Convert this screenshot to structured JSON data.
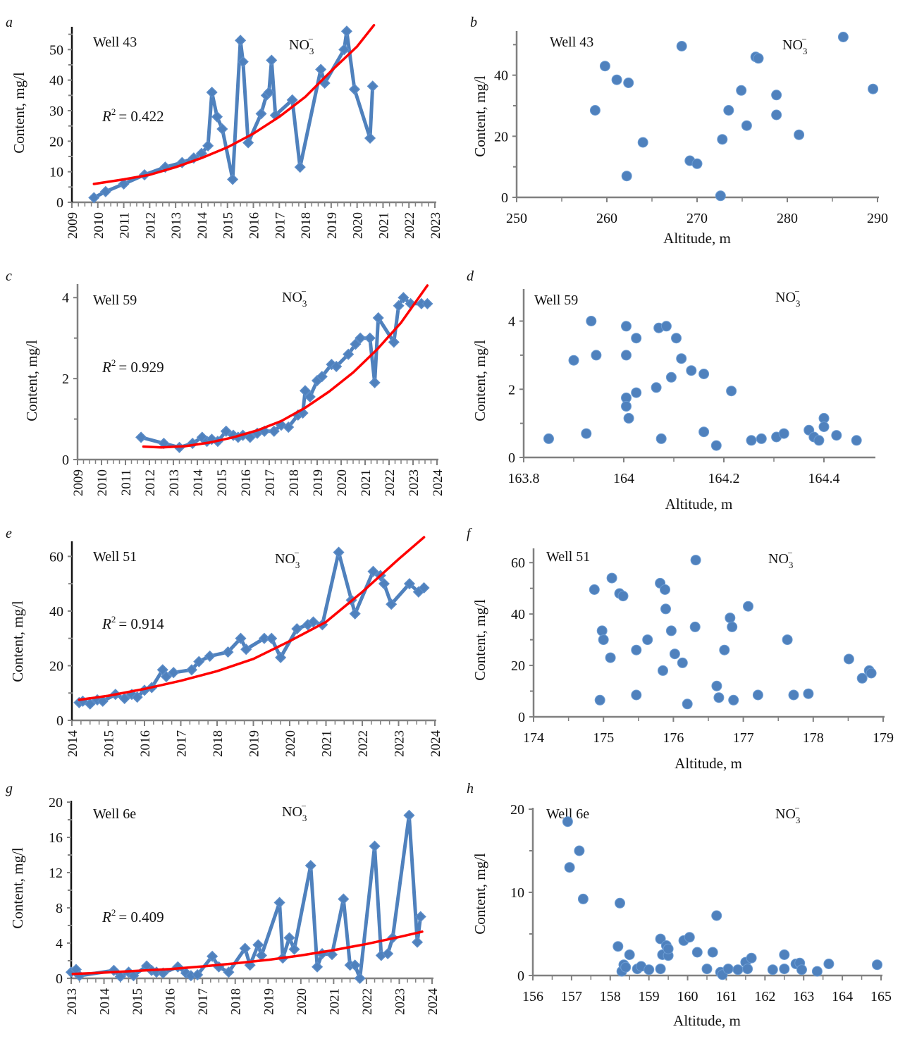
{
  "figure": {
    "colors": {
      "series": "#4f81bd",
      "trend": "#ff0000",
      "axis_dark": "#111111",
      "axis_gray": "#808080"
    },
    "ion_label": {
      "base": "NO",
      "sub": "3",
      "sup": "−"
    }
  },
  "chart_data": [
    {
      "panel": "a",
      "type": "line",
      "well": "Well 43",
      "r2_label": "R",
      "r2_value": "= 0.422",
      "xlabel": "",
      "ylabel": "Content, mg/l",
      "xlim": [
        2009,
        2023
      ],
      "ylim": [
        0,
        57
      ],
      "xticks": [
        "2009",
        "2010",
        "2011",
        "2012",
        "2013",
        "2014",
        "2015",
        "2016",
        "2017",
        "2018",
        "2019",
        "2020",
        "2021",
        "2022",
        "2023"
      ],
      "yticks": [
        0,
        10,
        20,
        30,
        40,
        50
      ],
      "x": [
        2009.85,
        2010.3,
        2011.0,
        2011.8,
        2012.6,
        2013.25,
        2013.7,
        2014.0,
        2014.25,
        2014.4,
        2014.6,
        2014.8,
        2015.2,
        2015.5,
        2015.6,
        2015.8,
        2016.3,
        2016.5,
        2016.6,
        2016.7,
        2016.85,
        2017.5,
        2017.8,
        2018.6,
        2018.75,
        2019.5,
        2019.6,
        2019.9,
        2020.5,
        2020.6
      ],
      "y": [
        1.5,
        3.5,
        6,
        9,
        11.5,
        13,
        14.5,
        16,
        18.5,
        36,
        28,
        24,
        7.5,
        53,
        46,
        19.5,
        29,
        35,
        36,
        46.5,
        28.5,
        33.5,
        11.5,
        43.5,
        39,
        50,
        56,
        37,
        21,
        38
      ],
      "trend": {
        "type": "exponential",
        "x": [
          2009.85,
          2011,
          2012,
          2013,
          2014,
          2015,
          2016,
          2017,
          2018,
          2019,
          2020,
          2020.65
        ],
        "y": [
          6,
          7.5,
          9,
          11.5,
          14.5,
          18,
          22.5,
          28,
          34.5,
          43,
          51,
          58
        ]
      }
    },
    {
      "panel": "b",
      "type": "scatter",
      "well": "Well 43",
      "xlabel": "Altitude, m",
      "ylabel": "Content, mg/l",
      "xlim": [
        250,
        290
      ],
      "ylim": [
        0,
        54
      ],
      "xticks": [
        250,
        260,
        270,
        280,
        290
      ],
      "yticks": [
        0,
        20,
        40
      ],
      "x": [
        258.7,
        259.8,
        261.1,
        262.4,
        262.2,
        264.0,
        268.3,
        269.2,
        270.0,
        272.6,
        272.8,
        273.5,
        274.9,
        275.5,
        276.5,
        276.8,
        278.8,
        278.8,
        281.3,
        286.2,
        289.5
      ],
      "y": [
        28.5,
        43,
        38.5,
        37.5,
        7,
        18,
        49.5,
        12,
        11,
        0.5,
        19,
        28.5,
        35,
        23.5,
        46,
        45.5,
        33.5,
        27,
        20.5,
        52.5,
        35.5
      ]
    },
    {
      "panel": "c",
      "type": "line",
      "well": "Well 59",
      "r2_label": "R",
      "r2_value": "= 0.929",
      "xlabel": "",
      "ylabel": "Content, mg/l",
      "xlim": [
        2009,
        2024
      ],
      "ylim": [
        0,
        4.3
      ],
      "xticks": [
        "2009",
        "2010",
        "2011",
        "2012",
        "2013",
        "2014",
        "2015",
        "2016",
        "2017",
        "2018",
        "2019",
        "2020",
        "2021",
        "2022",
        "2023",
        "2024"
      ],
      "yticks": [
        0,
        2,
        4
      ],
      "x": [
        2011.65,
        2012.6,
        2013.25,
        2013.8,
        2014.2,
        2014.4,
        2014.6,
        2014.85,
        2015.2,
        2015.5,
        2015.7,
        2015.9,
        2016.2,
        2016.5,
        2016.8,
        2017.2,
        2017.5,
        2017.8,
        2018.2,
        2018.4,
        2018.5,
        2018.7,
        2019.0,
        2019.2,
        2019.6,
        2019.8,
        2020.3,
        2020.6,
        2020.8,
        2021.2,
        2021.4,
        2021.55,
        2022.2,
        2022.4,
        2022.6,
        2022.9,
        2023.35,
        2023.6
      ],
      "y": [
        0.55,
        0.4,
        0.3,
        0.4,
        0.55,
        0.45,
        0.5,
        0.45,
        0.7,
        0.6,
        0.55,
        0.6,
        0.55,
        0.65,
        0.7,
        0.7,
        0.85,
        0.8,
        1.1,
        1.15,
        1.7,
        1.55,
        1.95,
        2.05,
        2.35,
        2.3,
        2.6,
        2.85,
        3.0,
        3.0,
        1.9,
        3.5,
        2.9,
        3.8,
        4.0,
        3.85,
        3.85,
        3.85
      ],
      "trend": {
        "type": "polynomial",
        "x": [
          2011.75,
          2012.5,
          2013.5,
          2014.5,
          2015.5,
          2016.5,
          2017.5,
          2018.5,
          2019.5,
          2020.5,
          2021.5,
          2022.5,
          2023.6
        ],
        "y": [
          0.32,
          0.3,
          0.33,
          0.42,
          0.55,
          0.72,
          0.95,
          1.28,
          1.68,
          2.15,
          2.72,
          3.38,
          4.3
        ]
      }
    },
    {
      "panel": "d",
      "type": "scatter",
      "well": "Well 59",
      "xlabel": "Altitude, m",
      "ylabel": "Content, mg/l",
      "xlim": [
        163.8,
        164.5
      ],
      "ylim": [
        0,
        4.9
      ],
      "xticks": [
        "163.8",
        "164",
        "164.2",
        "164.4"
      ],
      "xtick_values": [
        163.8,
        164.0,
        164.2,
        164.4
      ],
      "yticks": [
        0,
        2,
        4
      ],
      "x": [
        163.85,
        163.9,
        163.925,
        163.935,
        163.945,
        164.005,
        164.005,
        164.005,
        164.005,
        164.01,
        164.025,
        164.025,
        164.065,
        164.07,
        164.075,
        164.085,
        164.095,
        164.105,
        164.115,
        164.135,
        164.16,
        164.16,
        164.185,
        164.215,
        164.255,
        164.275,
        164.305,
        164.32,
        164.37,
        164.38,
        164.39,
        164.4,
        164.4,
        164.425,
        164.465
      ],
      "y": [
        0.55,
        2.85,
        0.7,
        4.0,
        3.0,
        3.85,
        3.0,
        1.75,
        1.5,
        1.15,
        3.5,
        1.9,
        2.05,
        3.8,
        0.55,
        3.85,
        2.35,
        3.5,
        2.9,
        2.55,
        2.45,
        0.75,
        0.35,
        1.95,
        0.5,
        0.55,
        0.6,
        0.7,
        0.8,
        0.6,
        0.5,
        1.15,
        0.9,
        0.65,
        0.5
      ]
    },
    {
      "panel": "e",
      "type": "line",
      "well": "Well 51",
      "r2_label": "R",
      "r2_value": "= 0.914",
      "xlabel": "",
      "ylabel": "Content, mg/l",
      "xlim": [
        2014,
        2024
      ],
      "ylim": [
        0,
        65
      ],
      "xticks": [
        "2014",
        "2015",
        "2016",
        "2017",
        "2018",
        "2019",
        "2020",
        "2021",
        "2022",
        "2023",
        "2024"
      ],
      "yticks": [
        0,
        20,
        40,
        60
      ],
      "x": [
        2014.2,
        2014.3,
        2014.5,
        2014.7,
        2014.85,
        2015.2,
        2015.45,
        2015.65,
        2015.8,
        2016.0,
        2016.2,
        2016.5,
        2016.6,
        2016.8,
        2017.3,
        2017.5,
        2017.8,
        2018.3,
        2018.65,
        2018.8,
        2019.3,
        2019.5,
        2019.75,
        2020.2,
        2020.5,
        2020.65,
        2020.9,
        2021.35,
        2021.7,
        2021.8,
        2022.3,
        2022.5,
        2022.6,
        2022.8,
        2023.3,
        2023.55,
        2023.7
      ],
      "y": [
        6.5,
        7,
        6,
        7.5,
        7,
        9.5,
        8,
        9.5,
        8.5,
        11,
        12,
        18.5,
        16,
        17.5,
        18.5,
        21.5,
        23.5,
        25,
        30,
        26,
        30,
        30,
        23,
        33.5,
        35,
        36,
        35,
        61.5,
        44,
        39,
        54.5,
        53,
        50,
        42.5,
        50,
        47,
        48.5
      ],
      "trend": {
        "type": "exponential",
        "x": [
          2014.2,
          2015,
          2016,
          2017,
          2018,
          2019,
          2020,
          2021,
          2022,
          2023,
          2023.7
        ],
        "y": [
          7.5,
          9,
          11.5,
          14.5,
          18,
          22.5,
          29,
          36,
          47,
          59,
          67
        ]
      }
    },
    {
      "panel": "f",
      "type": "scatter",
      "well": "Well 51",
      "xlabel": "Altitude, m",
      "ylabel": "Content, mg/l",
      "xlim": [
        174,
        179
      ],
      "ylim": [
        0,
        65
      ],
      "xticks": [
        174,
        175,
        176,
        177,
        178,
        179
      ],
      "yticks": [
        0,
        20,
        40,
        60
      ],
      "x": [
        174.87,
        174.95,
        174.98,
        175.0,
        175.1,
        175.12,
        175.23,
        175.28,
        175.47,
        175.47,
        175.63,
        175.81,
        175.85,
        175.88,
        175.89,
        175.97,
        176.02,
        176.13,
        176.2,
        176.31,
        176.32,
        176.62,
        176.65,
        176.73,
        176.81,
        176.84,
        176.86,
        177.07,
        177.21,
        177.63,
        177.72,
        177.93,
        178.51,
        178.7,
        178.8,
        178.83
      ],
      "y": [
        49.5,
        6.5,
        33.5,
        30,
        23,
        54,
        48,
        47,
        26,
        8.5,
        30,
        52,
        18,
        49.5,
        42,
        33.5,
        24.5,
        21,
        5,
        35,
        61,
        12,
        7.5,
        26,
        38.5,
        35,
        6.5,
        43,
        8.5,
        30,
        8.5,
        9,
        22.5,
        15,
        18,
        17
      ]
    },
    {
      "panel": "g",
      "type": "line",
      "well": "Well 6e",
      "r2_label": "R",
      "r2_value": "= 0.409",
      "xlabel": "",
      "ylabel": "Content, mg/l",
      "xlim": [
        2013,
        2024
      ],
      "ylim": [
        0,
        20
      ],
      "xticks": [
        "2013",
        "2014",
        "2015",
        "2016",
        "2017",
        "2018",
        "2019",
        "2020",
        "2021",
        "2022",
        "2023",
        "2024"
      ],
      "yticks": [
        0,
        4,
        8,
        12,
        16,
        20
      ],
      "x": [
        2013.0,
        2013.15,
        2013.25,
        2014.3,
        2014.5,
        2014.75,
        2014.9,
        2015.3,
        2015.45,
        2015.6,
        2015.8,
        2016.25,
        2016.5,
        2016.65,
        2016.85,
        2017.3,
        2017.5,
        2017.8,
        2018.3,
        2018.45,
        2018.7,
        2018.8,
        2019.35,
        2019.45,
        2019.65,
        2019.8,
        2020.3,
        2020.5,
        2020.65,
        2020.95,
        2021.3,
        2021.5,
        2021.65,
        2021.8,
        2022.25,
        2022.45,
        2022.65,
        2022.8,
        2023.3,
        2023.55,
        2023.65
      ],
      "y": [
        0.7,
        1.0,
        0.3,
        0.9,
        0.2,
        0.7,
        0.3,
        1.4,
        0.9,
        0.7,
        0.6,
        1.3,
        0.6,
        0.3,
        0.4,
        2.5,
        1.3,
        0.7,
        3.4,
        1.5,
        3.8,
        2.6,
        8.6,
        2.3,
        4.6,
        3.3,
        12.8,
        1.3,
        2.8,
        2.7,
        9.0,
        1.5,
        1.5,
        0.0,
        15.0,
        2.6,
        2.8,
        4.6,
        18.5,
        4.1,
        7.0
      ],
      "trend": {
        "type": "exponential",
        "x": [
          2013.05,
          2014,
          2015,
          2016,
          2017,
          2018,
          2019,
          2020,
          2021,
          2022,
          2023,
          2023.7
        ],
        "y": [
          0.5,
          0.65,
          0.85,
          1.05,
          1.35,
          1.7,
          2.1,
          2.6,
          3.2,
          3.9,
          4.7,
          5.3
        ]
      }
    },
    {
      "panel": "h",
      "type": "scatter",
      "well": "Well 6e",
      "xlabel": "Altitude, m",
      "ylabel": "Content, mg/l",
      "xlim": [
        156,
        165
      ],
      "ylim": [
        0,
        20
      ],
      "xticks": [
        156,
        157,
        158,
        159,
        160,
        161,
        162,
        163,
        164,
        165
      ],
      "yticks": [
        0,
        10,
        20
      ],
      "x": [
        156.9,
        156.95,
        157.2,
        157.3,
        158.2,
        158.25,
        158.3,
        158.35,
        158.4,
        158.5,
        158.7,
        158.8,
        159.0,
        159.3,
        159.3,
        159.35,
        159.45,
        159.5,
        159.5,
        159.9,
        160.05,
        160.25,
        160.5,
        160.65,
        160.75,
        160.85,
        160.9,
        161.05,
        161.3,
        161.5,
        161.55,
        161.65,
        162.2,
        162.5,
        162.5,
        162.8,
        162.9,
        162.95,
        163.35,
        163.65,
        164.9
      ],
      "y": [
        18.5,
        13.0,
        15.0,
        9.2,
        3.5,
        8.7,
        0.5,
        1.3,
        1.0,
        2.5,
        0.8,
        1.1,
        0.7,
        4.4,
        0.8,
        2.5,
        3.6,
        2.4,
        3.2,
        4.2,
        4.6,
        2.8,
        0.8,
        2.8,
        7.2,
        0.4,
        0.1,
        0.8,
        0.7,
        1.6,
        0.8,
        2.1,
        0.7,
        2.5,
        0.8,
        1.4,
        1.5,
        0.7,
        0.5,
        1.4,
        1.3
      ]
    }
  ]
}
